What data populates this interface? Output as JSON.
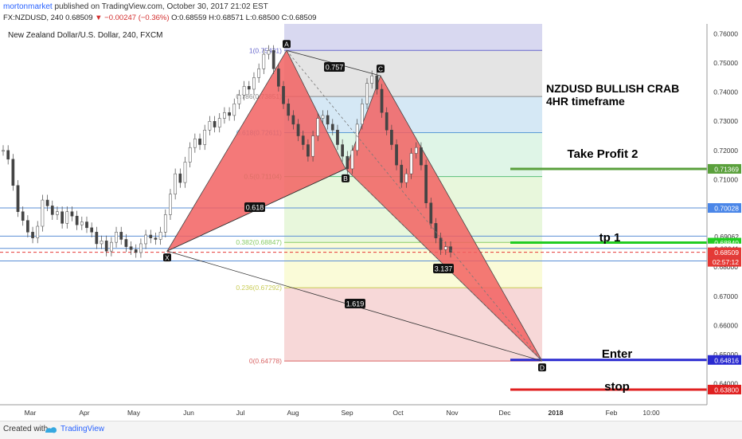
{
  "header": {
    "publisher": "mortonmarket",
    "published_text": "published on TradingView.com, October 30, 2017 21:02 EST",
    "symbol_line": "FX:NZDUSD, 240",
    "last": "0.68509",
    "change": "−0.00247 (−0.36%)",
    "open": "O:0.68559",
    "high": "H:0.68571",
    "low": "L:0.68500",
    "close": "C:0.68509"
  },
  "chart_title": "New Zealand Dollar/U.S. Dollar, 240, FXCM",
  "footer": {
    "created_with": "Created with",
    "brand": "TradingView"
  },
  "colors": {
    "pattern_fill": "#f26161",
    "target": "#2a2ad0",
    "stop": "#e02020",
    "tp1": "#22cc22",
    "tp2": "#5aa03c",
    "price_tag": "#e53935"
  },
  "chart_data": {
    "type": "line",
    "x_ticks": [
      "Mar",
      "Apr",
      "May",
      "Jun",
      "Jul",
      "Aug",
      "Sep",
      "Oct",
      "Nov",
      "Dec",
      "2018",
      "Feb",
      "10:00"
    ],
    "y_ticks": [
      0.76,
      0.75,
      0.74,
      0.73,
      0.72,
      0.71,
      0.7,
      0.69,
      0.68,
      0.67,
      0.66,
      0.65,
      0.64
    ],
    "y_tick_labels": [
      "0.76000",
      "0.75000",
      "0.74000",
      "0.73000",
      "0.72000",
      "0.71000",
      "0.70000",
      "0.69000",
      "0.68000",
      "0.67000",
      "0.66000",
      "0.65000",
      "0.64000"
    ],
    "ylim": [
      0.6328,
      0.7634
    ],
    "pattern": {
      "name": "NZDUSD BULLISH CRAB",
      "timeframe": "4HR timeframe",
      "points": [
        {
          "label": "X",
          "t": "May",
          "value": 0.6855
        },
        {
          "label": "A",
          "t": "Jul",
          "value": 0.7543
        },
        {
          "label": "B",
          "t": "Sep",
          "value": 0.7137
        },
        {
          "label": "C",
          "t": "Sep",
          "value": 0.7456
        },
        {
          "label": "D",
          "t": "Dec",
          "value": 0.6478
        }
      ],
      "ratios": [
        "0.757",
        "0.618",
        "1.619",
        "3.137"
      ]
    },
    "fib_levels": [
      {
        "label": "1(0.75431)",
        "value": 0.75431
      },
      {
        "label": "0.786(0.73851)",
        "value": 0.73851
      },
      {
        "label": "0.618(0.72611)",
        "value": 0.72611
      },
      {
        "label": "0.5(0.71104)",
        "value": 0.71104
      },
      {
        "label": "0.382(0.68847)",
        "value": 0.68847
      },
      {
        "label": "0.236(0.67292)",
        "value": 0.67292
      },
      {
        "label": "0(0.64778)",
        "value": 0.64778
      }
    ],
    "horizontal_levels": [
      {
        "name": "Take Profit 2",
        "value": 0.71369,
        "tag": "0.71369"
      },
      {
        "name": "",
        "value": 0.70028,
        "tag": "0.70028"
      },
      {
        "name": "",
        "value": 0.69062,
        "tag": "0.69062"
      },
      {
        "name": "tp 1",
        "value": 0.6884,
        "tag": "0.68840"
      },
      {
        "name": "",
        "value": 0.68641,
        "tag": "0.68641"
      },
      {
        "name": "",
        "value": 0.6821,
        "tag": "0.68210"
      },
      {
        "name": "Enter",
        "value": 0.64816,
        "tag": "0.64816"
      },
      {
        "name": "stop",
        "value": 0.638,
        "tag": "0.63800"
      }
    ],
    "last_price": {
      "value": 0.68509,
      "tag": "0.68509",
      "countdown": "02:57:12"
    },
    "price_path": [
      0.72,
      0.717,
      0.708,
      0.699,
      0.696,
      0.692,
      0.69,
      0.694,
      0.703,
      0.701,
      0.698,
      0.699,
      0.695,
      0.699,
      0.6975,
      0.6945,
      0.6955,
      0.6935,
      0.692,
      0.688,
      0.689,
      0.6855,
      0.6885,
      0.692,
      0.6895,
      0.687,
      0.686,
      0.685,
      0.688,
      0.691,
      0.69,
      0.6895,
      0.692,
      0.698,
      0.705,
      0.712,
      0.709,
      0.716,
      0.721,
      0.724,
      0.722,
      0.727,
      0.73,
      0.728,
      0.731,
      0.733,
      0.732,
      0.736,
      0.739,
      0.742,
      0.741,
      0.745,
      0.748,
      0.753,
      0.7543,
      0.748,
      0.742,
      0.736,
      0.732,
      0.729,
      0.725,
      0.722,
      0.718,
      0.725,
      0.731,
      0.732,
      0.729,
      0.727,
      0.722,
      0.718,
      0.7137,
      0.72,
      0.729,
      0.736,
      0.743,
      0.7456,
      0.741,
      0.733,
      0.727,
      0.722,
      0.715,
      0.709,
      0.712,
      0.719,
      0.721,
      0.715,
      0.702,
      0.695,
      0.69,
      0.686,
      0.687,
      0.6851
    ]
  }
}
